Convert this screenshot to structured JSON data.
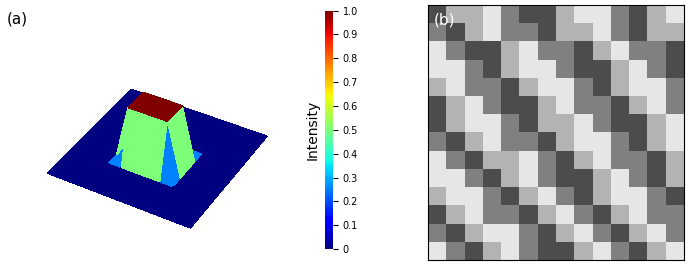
{
  "chart_data": [
    {
      "type": "surface",
      "panel": "(a)",
      "z": [
        [
          0,
          0,
          0,
          0,
          0,
          0,
          0,
          0,
          0,
          0,
          0,
          0
        ],
        [
          0,
          0,
          0,
          0,
          0,
          0,
          0,
          0,
          0,
          0,
          0,
          0
        ],
        [
          0,
          0,
          0,
          0,
          0,
          0,
          0,
          0,
          0,
          0,
          0,
          0
        ],
        [
          0,
          0,
          0,
          0,
          0,
          0,
          0,
          0,
          0,
          0,
          0,
          0
        ],
        [
          0,
          0,
          0,
          0,
          1.0,
          1.0,
          1.0,
          1.0,
          0,
          0,
          0,
          0
        ],
        [
          0,
          0,
          0,
          0,
          1.0,
          1.0,
          1.0,
          1.0,
          0,
          0,
          0,
          0
        ],
        [
          0,
          0,
          0,
          0,
          1.0,
          1.0,
          1.0,
          1.0,
          0,
          0,
          0,
          0
        ],
        [
          0,
          0,
          0,
          0,
          0,
          0,
          0,
          0,
          0,
          0,
          0,
          0
        ],
        [
          0,
          0,
          0,
          0,
          0,
          0,
          0,
          0,
          0,
          0,
          0,
          0
        ],
        [
          0,
          0,
          0,
          0,
          0,
          0,
          0,
          0,
          0,
          0,
          0,
          0
        ],
        [
          0,
          0,
          0,
          0,
          0,
          0,
          0,
          0,
          0,
          0,
          0,
          0
        ],
        [
          0,
          0,
          0,
          0,
          0,
          0,
          0,
          0,
          0,
          0,
          0,
          0
        ]
      ],
      "zlim": [
        0,
        1.0
      ],
      "colorbar": {
        "label": "Intensity",
        "range": [
          0,
          1.0
        ],
        "ticks": [
          0,
          0.1,
          0.2,
          0.3,
          0.4,
          0.5,
          0.6,
          0.7,
          0.8,
          0.9,
          1.0
        ]
      },
      "tick_labels": false
    },
    {
      "type": "image",
      "panel": "(b)",
      "cells": [
        [
          0.3,
          0.7,
          0.7,
          0.9,
          0.5,
          0.3,
          0.3,
          0.7,
          0.9,
          0.9,
          0.5,
          0.3,
          0.7,
          0.9
        ],
        [
          0.5,
          0.3,
          0.7,
          0.9,
          0.5,
          0.5,
          0.3,
          0.7,
          0.7,
          0.9,
          0.5,
          0.3,
          0.7,
          0.7
        ],
        [
          0.9,
          0.5,
          0.3,
          0.3,
          0.7,
          0.9,
          0.5,
          0.5,
          0.3,
          0.7,
          0.9,
          0.5,
          0.5,
          0.3
        ],
        [
          0.9,
          0.9,
          0.5,
          0.3,
          0.7,
          0.9,
          0.9,
          0.5,
          0.3,
          0.3,
          0.7,
          0.9,
          0.5,
          0.3
        ],
        [
          0.7,
          0.9,
          0.5,
          0.5,
          0.3,
          0.7,
          0.9,
          0.9,
          0.5,
          0.3,
          0.7,
          0.9,
          0.9,
          0.5
        ],
        [
          0.3,
          0.7,
          0.9,
          0.5,
          0.3,
          0.3,
          0.7,
          0.9,
          0.5,
          0.5,
          0.3,
          0.7,
          0.9,
          0.5
        ],
        [
          0.3,
          0.7,
          0.9,
          0.9,
          0.5,
          0.3,
          0.7,
          0.7,
          0.9,
          0.5,
          0.3,
          0.3,
          0.7,
          0.9
        ],
        [
          0.5,
          0.3,
          0.7,
          0.9,
          0.5,
          0.5,
          0.3,
          0.7,
          0.9,
          0.9,
          0.5,
          0.3,
          0.7,
          0.9
        ],
        [
          0.9,
          0.5,
          0.3,
          0.7,
          0.7,
          0.9,
          0.5,
          0.3,
          0.7,
          0.9,
          0.5,
          0.5,
          0.3,
          0.7
        ],
        [
          0.9,
          0.9,
          0.5,
          0.3,
          0.7,
          0.9,
          0.5,
          0.3,
          0.3,
          0.7,
          0.9,
          0.5,
          0.3,
          0.7
        ],
        [
          0.7,
          0.9,
          0.9,
          0.5,
          0.3,
          0.7,
          0.9,
          0.5,
          0.3,
          0.7,
          0.9,
          0.9,
          0.5,
          0.3
        ],
        [
          0.3,
          0.7,
          0.9,
          0.5,
          0.5,
          0.3,
          0.7,
          0.9,
          0.5,
          0.3,
          0.7,
          0.9,
          0.5,
          0.5
        ],
        [
          0.5,
          0.3,
          0.7,
          0.9,
          0.9,
          0.5,
          0.3,
          0.7,
          0.9,
          0.5,
          0.3,
          0.7,
          0.9,
          0.5
        ],
        [
          0.9,
          0.5,
          0.3,
          0.7,
          0.9,
          0.5,
          0.3,
          0.3,
          0.7,
          0.9,
          0.5,
          0.3,
          0.7,
          0.9
        ]
      ],
      "range": [
        0,
        1.0
      ],
      "tick_labels": false
    }
  ]
}
